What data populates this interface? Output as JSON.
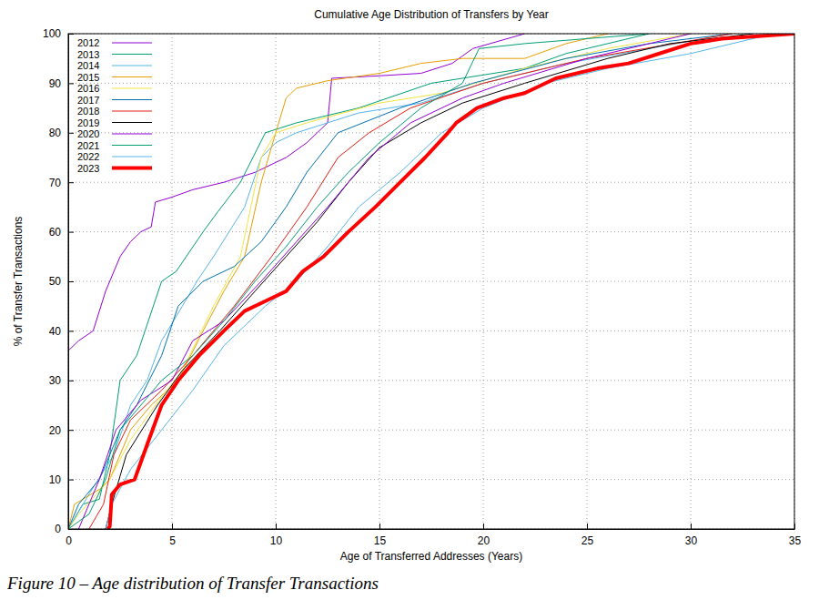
{
  "chart_data": {
    "type": "line",
    "title": "Cumulative Age Distribution of Transfers by Year",
    "x_label": "Age of Transferred Addresses (Years)",
    "y_label": "% of Transfer Transactions",
    "caption": "Figure 10 – Age distribution of Transfer Transactions",
    "xlim": [
      0,
      35
    ],
    "ylim": [
      0,
      100
    ],
    "xticks": [
      0,
      5,
      10,
      15,
      20,
      25,
      30,
      35
    ],
    "yticks": [
      0,
      10,
      20,
      30,
      40,
      50,
      60,
      70,
      80,
      90,
      100
    ],
    "grid": true,
    "legend": "upper left",
    "series": [
      {
        "name": "2012",
        "color": "#9400d3",
        "x": [
          0,
          0.5,
          1.2,
          1.8,
          2,
          2.5,
          3,
          3.5,
          4,
          4.2,
          5,
          6,
          7.5,
          9,
          10.5,
          11.5,
          12,
          12.5,
          12.7,
          15,
          17,
          18.5,
          19.5,
          22
        ],
        "values": [
          36,
          38,
          40,
          48,
          50,
          55,
          58,
          60,
          61,
          66,
          67,
          68.5,
          70,
          72,
          75,
          78,
          80,
          82,
          91,
          91.5,
          92,
          94,
          97,
          100
        ]
      },
      {
        "name": "2013",
        "color": "#009e73",
        "x": [
          0,
          0.7,
          1.5,
          2,
          2.5,
          3.3,
          4.5,
          5.2,
          6.5,
          7.2,
          8.3,
          9.5,
          11,
          12,
          14,
          17.5,
          22,
          24,
          28
        ],
        "values": [
          0,
          5,
          6,
          15,
          30,
          35,
          50,
          52,
          60,
          64,
          70,
          80,
          82,
          83,
          85,
          90,
          93,
          96,
          100
        ]
      },
      {
        "name": "2014",
        "color": "#56b4e9",
        "x": [
          0,
          1,
          2.2,
          3,
          3.8,
          4.5,
          5.5,
          6.2,
          7,
          8.5,
          9.3,
          10,
          11,
          12.5,
          14,
          17,
          20,
          24,
          28,
          32
        ],
        "values": [
          0,
          7,
          15,
          25,
          30,
          38,
          45,
          50,
          55,
          65,
          75,
          78,
          80,
          82,
          84,
          86,
          90,
          94,
          97,
          100
        ]
      },
      {
        "name": "2015",
        "color": "#e69f00",
        "x": [
          0,
          0.3,
          1.5,
          2,
          3,
          4,
          5.3,
          6.5,
          7.5,
          8.5,
          9.3,
          10,
          10.5,
          11,
          12.5,
          15,
          17,
          19,
          22,
          24,
          26
        ],
        "values": [
          0,
          5,
          8,
          10,
          20,
          25,
          30,
          40,
          48,
          55,
          70,
          80,
          87,
          89,
          90.5,
          92,
          94,
          95,
          95,
          98,
          100
        ]
      },
      {
        "name": "2016",
        "color": "#f0e442",
        "x": [
          0,
          0.5,
          2,
          3,
          4.2,
          5.5,
          7,
          8.3,
          8.8,
          9.3,
          10,
          11.5,
          15,
          18,
          22,
          26,
          30
        ],
        "values": [
          0,
          3,
          10,
          18,
          25,
          32,
          45,
          55,
          65,
          75,
          80,
          82,
          86,
          88,
          93,
          97,
          100
        ]
      },
      {
        "name": "2017",
        "color": "#0072b2",
        "x": [
          0,
          0.5,
          1.5,
          2.5,
          3.3,
          4.5,
          5.3,
          6.5,
          8,
          9.3,
          10.5,
          11.5,
          13,
          16,
          19.5,
          24,
          28,
          32
        ],
        "values": [
          0,
          5,
          10,
          20,
          25,
          35,
          45,
          50,
          53,
          58,
          65,
          72,
          80,
          85,
          90,
          95,
          98,
          100
        ]
      },
      {
        "name": "2018",
        "color": "#e51e10",
        "x": [
          1,
          1.7,
          2.2,
          3,
          4.5,
          6,
          8,
          9.8,
          11.5,
          13,
          14.5,
          16.5,
          20,
          25,
          32
        ],
        "values": [
          0,
          5,
          15,
          22,
          28,
          35,
          45,
          55,
          65,
          75,
          80,
          85,
          90,
          95,
          100
        ]
      },
      {
        "name": "2019",
        "color": "#000000",
        "x": [
          1.8,
          2.1,
          2.8,
          4.3,
          5.5,
          7.3,
          9,
          10.5,
          12,
          13.5,
          15,
          17,
          19,
          22,
          26,
          29,
          33
        ],
        "values": [
          0,
          5,
          15,
          25,
          32,
          40,
          48,
          55,
          62,
          70,
          77,
          82,
          86,
          90,
          95,
          98,
          100
        ]
      },
      {
        "name": "2020",
        "color": "#9400d3",
        "x": [
          0.5,
          1.5,
          2.3,
          3.5,
          5,
          6,
          7.5,
          9.3,
          11,
          12.5,
          14.5,
          16.5,
          19,
          21,
          25,
          30
        ],
        "values": [
          0,
          10,
          20,
          26,
          30,
          38,
          42,
          50,
          58,
          65,
          75,
          82,
          87,
          90,
          95,
          100
        ]
      },
      {
        "name": "2021",
        "color": "#009e73",
        "x": [
          0,
          1,
          1.8,
          2.5,
          3.5,
          4.5,
          6,
          7.5,
          9,
          10.5,
          12,
          13.5,
          15,
          17,
          19,
          19.8,
          22,
          28
        ],
        "values": [
          0,
          3,
          10,
          20,
          25,
          30,
          35,
          42,
          50,
          57,
          65,
          72,
          78,
          85,
          90,
          97,
          98,
          100
        ]
      },
      {
        "name": "2022",
        "color": "#56b4e9",
        "x": [
          1.8,
          2.1,
          3,
          4.5,
          6,
          7.5,
          9.5,
          11,
          12.5,
          14,
          16,
          18,
          20,
          23,
          26,
          30,
          34
        ],
        "values": [
          0,
          5,
          12,
          20,
          28,
          37,
          45,
          50,
          57,
          65,
          72,
          80,
          85,
          90,
          93,
          96,
          100
        ]
      },
      {
        "name": "2023",
        "color": "#ff0000",
        "x": [
          1.9,
          2,
          2.1,
          2.5,
          3.2,
          3.8,
          4.5,
          5.3,
          6.3,
          7.5,
          8.5,
          9.5,
          10.5,
          11.3,
          12.3,
          13.5,
          14.8,
          16,
          17.2,
          18.3,
          18.7,
          19.7,
          21,
          22,
          23.5,
          25.5,
          27,
          28.5,
          30,
          31.5,
          35
        ],
        "values": [
          0,
          0.5,
          7,
          9,
          10,
          17,
          25,
          30,
          35,
          40,
          44,
          46,
          48,
          52,
          55,
          60,
          65,
          70,
          75,
          80,
          82,
          85,
          87,
          88,
          91,
          93,
          94,
          96,
          98,
          99,
          100
        ]
      }
    ]
  }
}
